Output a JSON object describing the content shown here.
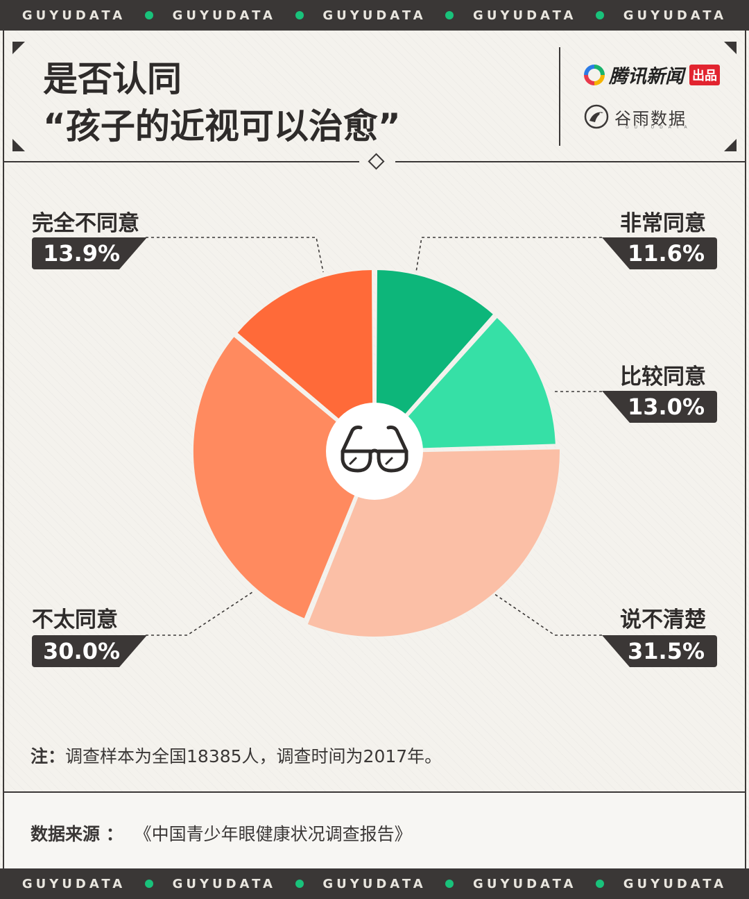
{
  "band": {
    "word": "GUYUDATA"
  },
  "title": {
    "line1": "是否认同",
    "line2": "“孩子的近视可以治愈”"
  },
  "brands": {
    "tencent": {
      "name": "腾讯新闻",
      "tag": "出品"
    },
    "guyu": {
      "name": "谷雨数据",
      "sub": "GUYUDATA"
    }
  },
  "chart_data": {
    "type": "pie",
    "title": "是否认同“孩子的近视可以治愈”",
    "slices": [
      {
        "label": "非常同意",
        "value": 11.6,
        "display": "11.6%",
        "color": "#0db67a"
      },
      {
        "label": "比较同意",
        "value": 13.0,
        "display": "13.0%",
        "color": "#36e0a6"
      },
      {
        "label": "说不清楚",
        "value": 31.5,
        "display": "31.5%",
        "color": "#fbbfa6"
      },
      {
        "label": "不太同意",
        "value": 30.0,
        "display": "30.0%",
        "color": "#ff8a5f"
      },
      {
        "label": "完全不同意",
        "value": 13.9,
        "display": "13.9%",
        "color": "#ff6a39"
      }
    ],
    "center_icon": "glasses-icon"
  },
  "note": {
    "prefix": "注：",
    "text": "调查样本为全国18385人，调查时间为2017年。"
  },
  "source": {
    "prefix": "数据来源 ：",
    "text": "《中国青少年眼健康状况调查报告》"
  },
  "colors": {
    "band": "#3a3736",
    "accent_dot": "#19c27b",
    "background": "#f4f2ed"
  }
}
